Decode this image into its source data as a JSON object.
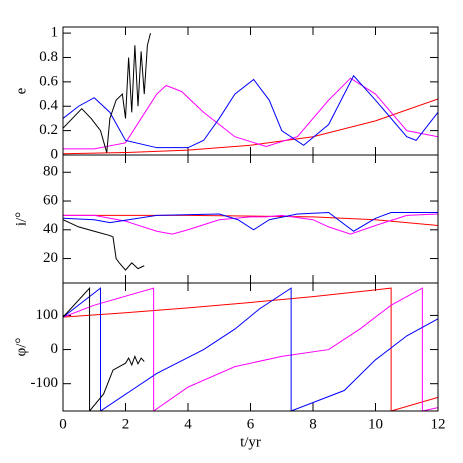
{
  "chart_data": [
    {
      "type": "line",
      "ylabel": "e",
      "xlim": [
        0,
        12
      ],
      "xticks": [
        0,
        2,
        4,
        6,
        8,
        10,
        12
      ],
      "ylim": [
        0,
        1.05
      ],
      "yticks": [
        0,
        0.2,
        0.4,
        0.6,
        0.8,
        1
      ],
      "series": [
        {
          "color": "#ff0000",
          "x": [
            0,
            2,
            4,
            6,
            8,
            10,
            12
          ],
          "values": [
            0.01,
            0.02,
            0.04,
            0.08,
            0.15,
            0.28,
            0.46
          ]
        },
        {
          "color": "#ff00ff",
          "x": [
            0,
            1,
            2,
            2.5,
            3,
            3.3,
            3.8,
            4.5,
            5.5,
            6.5,
            7.5,
            8.5,
            9.2,
            10,
            11,
            12
          ],
          "values": [
            0.05,
            0.05,
            0.1,
            0.3,
            0.5,
            0.57,
            0.52,
            0.35,
            0.15,
            0.07,
            0.15,
            0.45,
            0.63,
            0.5,
            0.2,
            0.15
          ]
        },
        {
          "color": "#0000ff",
          "x": [
            0,
            0.5,
            1,
            1.5,
            2,
            3,
            4,
            4.5,
            5,
            5.5,
            6.1,
            6.6,
            7,
            7.7,
            8.5,
            9.3,
            10,
            11,
            11.3,
            12
          ],
          "values": [
            0.3,
            0.4,
            0.47,
            0.35,
            0.12,
            0.06,
            0.06,
            0.12,
            0.3,
            0.5,
            0.62,
            0.45,
            0.2,
            0.08,
            0.25,
            0.65,
            0.45,
            0.15,
            0.12,
            0.35
          ]
        },
        {
          "color": "#000000",
          "x": [
            0,
            0.3,
            0.6,
            0.9,
            1.2,
            1.4,
            1.5,
            1.7,
            1.9,
            2.0,
            2.1,
            2.2,
            2.3,
            2.4,
            2.5,
            2.6,
            2.7,
            2.8
          ],
          "values": [
            0.22,
            0.3,
            0.38,
            0.3,
            0.2,
            0.02,
            0.3,
            0.45,
            0.5,
            0.3,
            0.8,
            0.35,
            0.9,
            0.4,
            0.85,
            0.5,
            0.9,
            1.0
          ]
        }
      ]
    },
    {
      "type": "line",
      "ylabel": "i/°",
      "xlim": [
        0,
        12
      ],
      "xticks": [
        0,
        2,
        4,
        6,
        8,
        10,
        12
      ],
      "ylim": [
        3,
        92
      ],
      "yticks": [
        20,
        40,
        60,
        80
      ],
      "series": [
        {
          "color": "#ff0000",
          "x": [
            0,
            4,
            8,
            10,
            12
          ],
          "values": [
            50,
            50,
            49,
            47,
            43
          ]
        },
        {
          "color": "#ff00ff",
          "x": [
            0,
            1,
            2,
            3,
            3.5,
            4,
            5,
            6,
            6.5,
            7,
            8,
            8.5,
            9.2,
            10,
            11,
            12
          ],
          "values": [
            50,
            50,
            46,
            39,
            37,
            40,
            47,
            49,
            49,
            50,
            47,
            42,
            37,
            43,
            50,
            51
          ]
        },
        {
          "color": "#0000ff",
          "x": [
            0,
            1,
            1.5,
            3,
            5,
            5.6,
            6.1,
            6.6,
            7.5,
            8.5,
            9.3,
            10,
            10.5,
            12
          ],
          "values": [
            48,
            47,
            45,
            50,
            51,
            47,
            40,
            47,
            51,
            52,
            39,
            48,
            52,
            52
          ]
        },
        {
          "color": "#000000",
          "x": [
            0,
            0.5,
            1,
            1.5,
            1.6,
            1.7,
            1.8,
            2.0,
            2.2,
            2.4,
            2.6
          ],
          "values": [
            47,
            42,
            39,
            36,
            35,
            20,
            17,
            12,
            17,
            13,
            15
          ]
        }
      ]
    },
    {
      "type": "line",
      "ylabel": "φ/°",
      "xlabel": "t/yr",
      "xlim": [
        0,
        12
      ],
      "xticks": [
        0,
        2,
        4,
        6,
        8,
        10,
        12
      ],
      "ylim": [
        -180,
        195
      ],
      "yticks": [
        -100,
        0,
        100
      ],
      "series": [
        {
          "color": "#ff0000",
          "x": [
            0,
            2,
            4,
            6,
            8,
            10,
            10.5,
            10.5,
            12
          ],
          "values": [
            95,
            108,
            122,
            138,
            155,
            175,
            180,
            -180,
            -140
          ]
        },
        {
          "color": "#ff00ff",
          "x": [
            0,
            1,
            2.9,
            2.9,
            4,
            5.5,
            7,
            8.5,
            9.5,
            10.5,
            11.5,
            11.5,
            12
          ],
          "values": [
            95,
            130,
            180,
            -180,
            -110,
            -50,
            -20,
            0,
            60,
            130,
            180,
            -180,
            -170
          ]
        },
        {
          "color": "#0000ff",
          "x": [
            0,
            1.2,
            1.2,
            3,
            4.5,
            5.5,
            6.3,
            7.3,
            7.3,
            9,
            10,
            11,
            12
          ],
          "values": [
            95,
            180,
            -180,
            -70,
            0,
            60,
            120,
            180,
            -180,
            -120,
            -30,
            40,
            90
          ]
        },
        {
          "color": "#000000",
          "x": [
            0,
            0.85,
            0.85,
            1.3,
            1.6,
            2.0,
            2.1,
            2.2,
            2.3,
            2.4,
            2.5,
            2.6
          ],
          "values": [
            95,
            180,
            -180,
            -130,
            -60,
            -40,
            -25,
            -45,
            -20,
            -42,
            -25,
            -35
          ]
        }
      ]
    }
  ]
}
